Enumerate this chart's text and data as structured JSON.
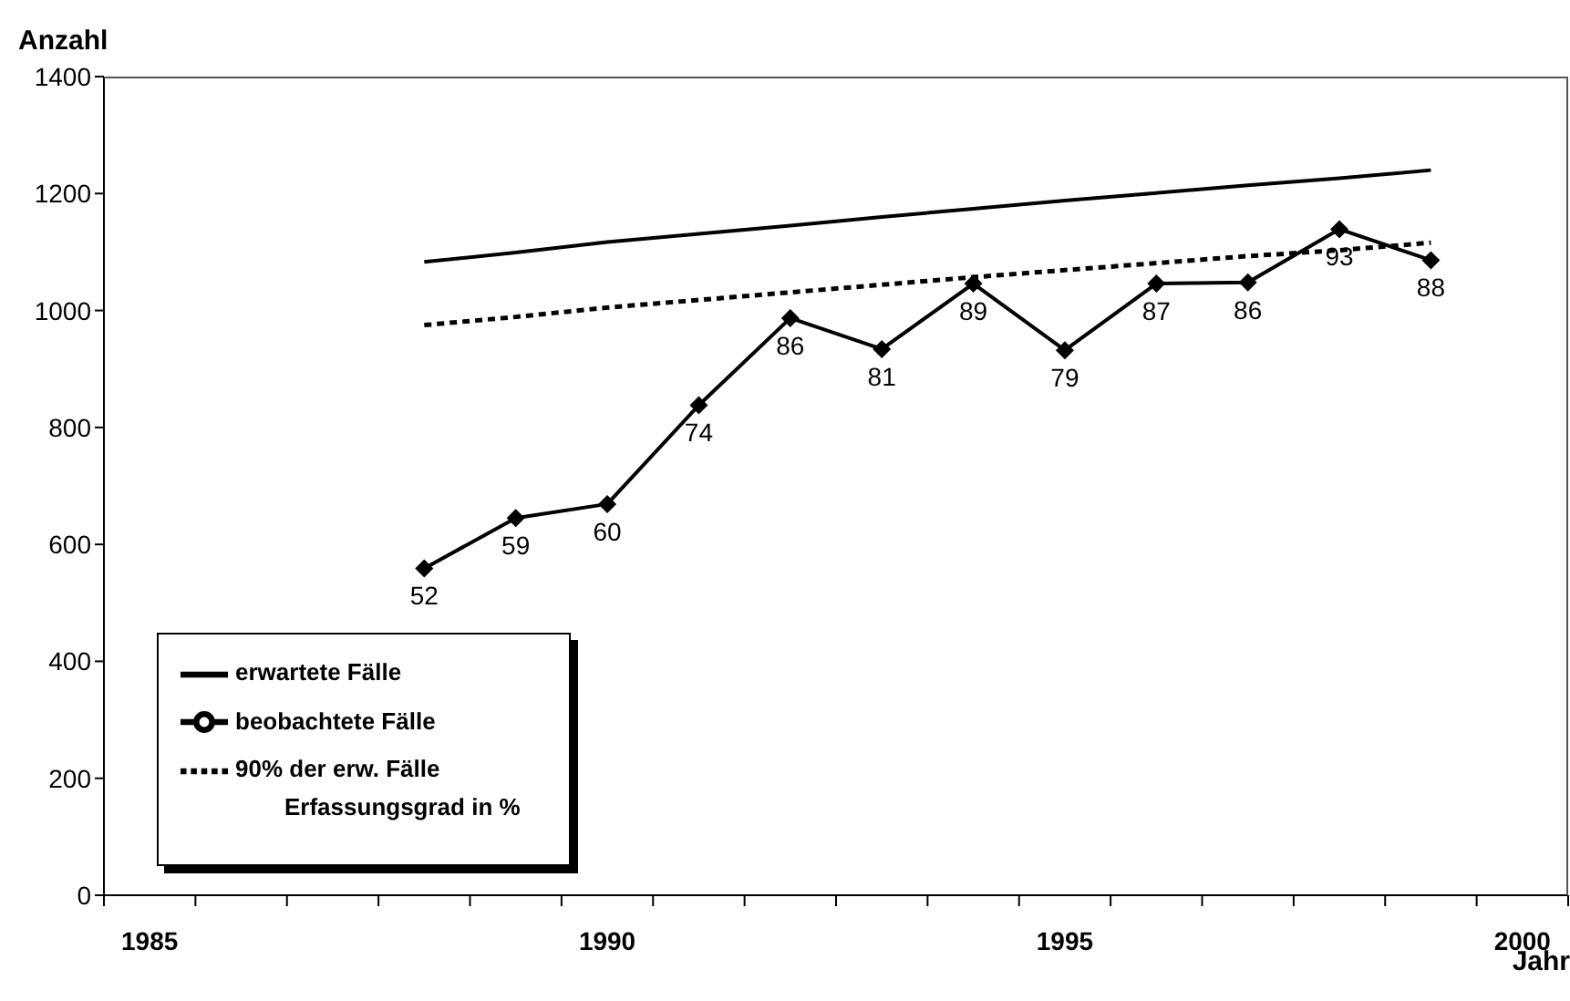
{
  "chart_data": {
    "type": "line",
    "xlabel": "Jahr",
    "ylabel": "Anzahl",
    "categories": [
      "1985",
      null,
      null,
      null,
      null,
      "1990",
      null,
      null,
      null,
      null,
      "1995",
      null,
      null,
      null,
      null,
      "2000"
    ],
    "series": [
      {
        "name": "erwartete Fälle",
        "color": "#000000",
        "line_style": "solid",
        "marker": "none",
        "values": [
          null,
          null,
          null,
          1083,
          1099,
          1117,
          1131,
          1145,
          1160,
          1174,
          1188,
          1201,
          1214,
          1226,
          1240,
          null
        ]
      },
      {
        "name": "beobachtete Fälle",
        "color": "#000000",
        "line_style": "solid",
        "marker": "diamond",
        "values": [
          null,
          null,
          null,
          559,
          645,
          669,
          838,
          987,
          934,
          1046,
          932,
          1046,
          1048,
          1139,
          1086,
          null
        ]
      },
      {
        "name": "90% der erw. Fälle",
        "color": "#000000",
        "line_style": "dashed",
        "marker": "none",
        "values": [
          null,
          null,
          null,
          975,
          989,
          1005,
          1018,
          1031,
          1044,
          1057,
          1069,
          1081,
          1093,
          1103,
          1116,
          null
        ]
      }
    ],
    "annotations": [
      "Erfassungsgrad in %",
      "52",
      "59",
      "60",
      "74",
      "86",
      "81",
      "89",
      "79",
      "87",
      "86",
      "93",
      "88"
    ],
    "ylim": [
      0,
      1400
    ],
    "yticks": [
      0,
      200,
      400,
      600,
      800,
      1000,
      1200,
      1400
    ],
    "grid": false,
    "legend": "bottom left"
  }
}
